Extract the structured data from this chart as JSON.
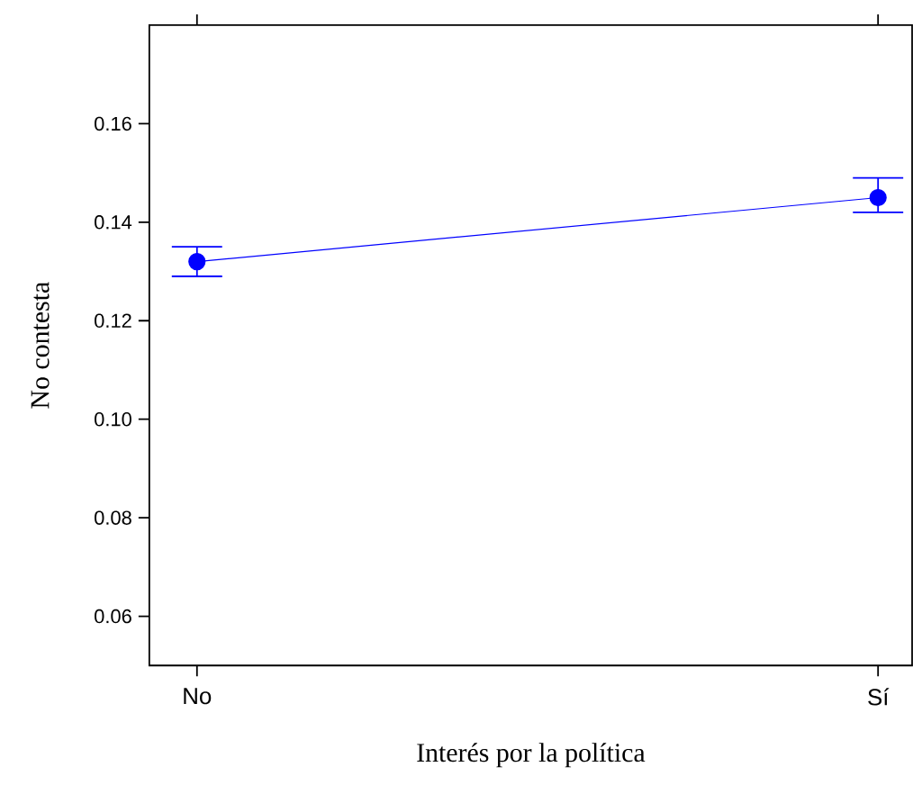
{
  "chart_data": {
    "type": "line",
    "xlabel": "Interés por la política",
    "ylabel": "No contesta",
    "categories": [
      "No",
      "Sí"
    ],
    "series": [
      {
        "color": "#0000ff",
        "values": [
          0.132,
          0.145
        ],
        "errors": [
          [
            0.129,
            0.135
          ],
          [
            0.142,
            0.149
          ]
        ]
      }
    ],
    "marker": "circle",
    "line_style": "solid",
    "ylim": [
      0.05,
      0.18
    ],
    "yticks": [
      0.06,
      0.08,
      {
        "value": 0.1,
        "label": "0.10"
      },
      0.12,
      0.14,
      0.16
    ]
  }
}
